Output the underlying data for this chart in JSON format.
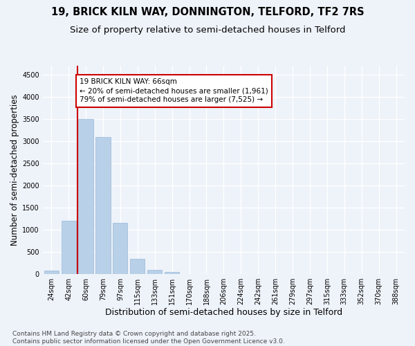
{
  "title": "19, BRICK KILN WAY, DONNINGTON, TELFORD, TF2 7RS",
  "subtitle": "Size of property relative to semi-detached houses in Telford",
  "xlabel": "Distribution of semi-detached houses by size in Telford",
  "ylabel": "Number of semi-detached properties",
  "categories": [
    "24sqm",
    "42sqm",
    "60sqm",
    "79sqm",
    "97sqm",
    "115sqm",
    "133sqm",
    "151sqm",
    "170sqm",
    "188sqm",
    "206sqm",
    "224sqm",
    "242sqm",
    "261sqm",
    "279sqm",
    "297sqm",
    "315sqm",
    "333sqm",
    "352sqm",
    "370sqm",
    "388sqm"
  ],
  "values": [
    80,
    1200,
    3500,
    3100,
    1150,
    350,
    100,
    50,
    0,
    0,
    0,
    0,
    0,
    0,
    0,
    0,
    0,
    0,
    0,
    0,
    0
  ],
  "bar_color": "#b8d0e8",
  "bar_edge_color": "#9ab8d8",
  "vline_pos": 1.5,
  "vline_color": "#cc0000",
  "annotation_text": "19 BRICK KILN WAY: 66sqm\n← 20% of semi-detached houses are smaller (1,961)\n79% of semi-detached houses are larger (7,525) →",
  "annotation_box_facecolor": "#ffffff",
  "annotation_box_edgecolor": "#cc0000",
  "ylim": [
    0,
    4700
  ],
  "yticks": [
    0,
    500,
    1000,
    1500,
    2000,
    2500,
    3000,
    3500,
    4000,
    4500
  ],
  "background_color": "#eef3fa",
  "grid_color": "#ffffff",
  "footnote": "Contains HM Land Registry data © Crown copyright and database right 2025.\nContains public sector information licensed under the Open Government Licence v3.0.",
  "title_fontsize": 10.5,
  "subtitle_fontsize": 9.5,
  "xlabel_fontsize": 9,
  "ylabel_fontsize": 8.5,
  "tick_fontsize": 7,
  "annotation_fontsize": 7.5,
  "footnote_fontsize": 6.5
}
